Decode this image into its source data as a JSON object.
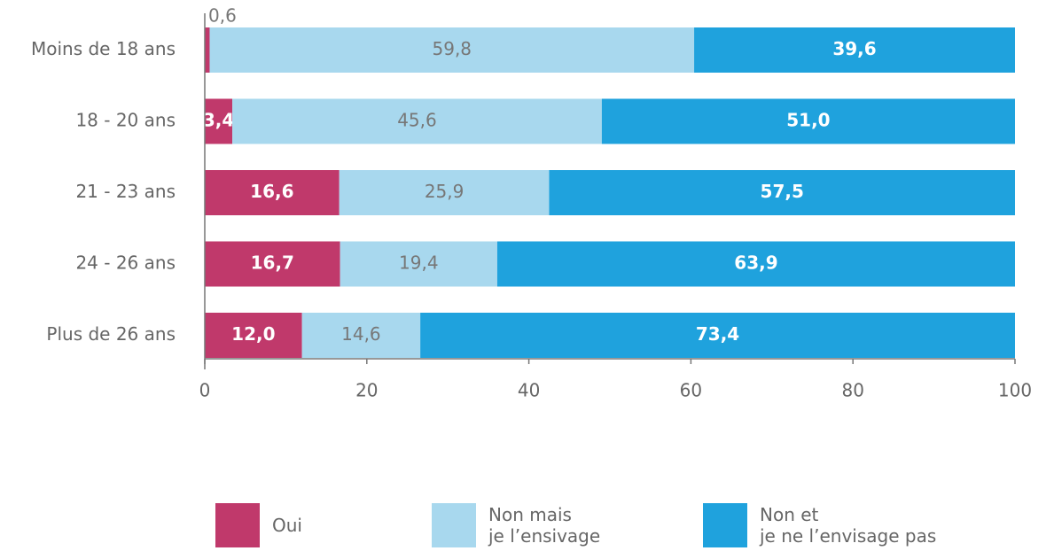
{
  "chart_data": {
    "type": "stacked_bar_horizontal",
    "categories": [
      "Moins de 18 ans",
      "18 - 20 ans",
      "21 - 23 ans",
      "24 - 26 ans",
      "Plus de 26 ans"
    ],
    "series": [
      {
        "name": "Oui",
        "color": "#c0396b",
        "values": [
          0.6,
          3.4,
          16.6,
          16.7,
          12.0
        ],
        "value_labels": [
          "0,6",
          "3,4",
          "16,6",
          "16,7",
          "12,0"
        ]
      },
      {
        "name": "Non mais\nje l’ensivage",
        "color": "#a8d8ee",
        "values": [
          59.8,
          45.6,
          25.9,
          19.4,
          14.6
        ],
        "value_labels": [
          "59,8",
          "45,6",
          "25,9",
          "19,4",
          "14,6"
        ]
      },
      {
        "name": "Non et\nje ne l’envisage pas",
        "color": "#1fa2dd",
        "values": [
          39.6,
          51.0,
          57.5,
          63.9,
          73.4
        ],
        "value_labels": [
          "39,6",
          "51,0",
          "57,5",
          "63,9",
          "73,4"
        ]
      }
    ],
    "xlim": [
      0,
      100
    ],
    "xticks": [
      0,
      20,
      40,
      60,
      80,
      100
    ]
  }
}
